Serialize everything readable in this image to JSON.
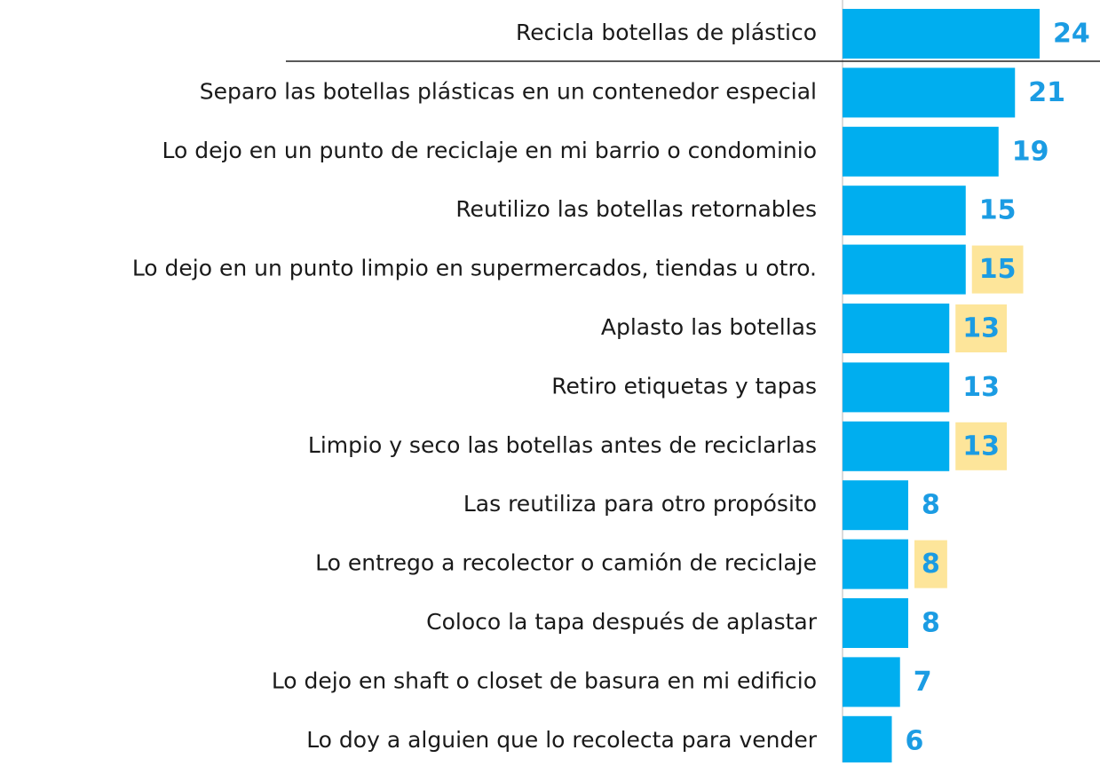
{
  "chart_data": {
    "type": "barh",
    "categories": [
      "Recicla botellas de plástico",
      "Separo las botellas plásticas en un contenedor especial",
      "Lo dejo en un punto de reciclaje en mi barrio o condominio",
      "Reutilizo las botellas retornables",
      "Lo dejo en un punto limpio en supermercados, tiendas u otro.",
      "Aplasto las botellas",
      "Retiro etiquetas y tapas",
      "Limpio y seco las botellas antes de reciclarlas",
      "Las reutiliza para otro propósito",
      "Lo entrego a recolector o camión de reciclaje ",
      "Coloco la tapa después de aplastar",
      "Lo dejo en shaft o closet de basura en mi edificio",
      "Lo doy a alguien que lo recolecta para vender"
    ],
    "values": [
      24,
      21,
      19,
      15,
      15,
      13,
      13,
      13,
      8,
      8,
      8,
      7,
      6
    ],
    "color": "#00aeef",
    "label_color": "#1b9ce3",
    "highlight": [
      false,
      false,
      false,
      false,
      true,
      true,
      false,
      true,
      false,
      true,
      false,
      false,
      false
    ],
    "highlight_color": "#fde59a"
  }
}
